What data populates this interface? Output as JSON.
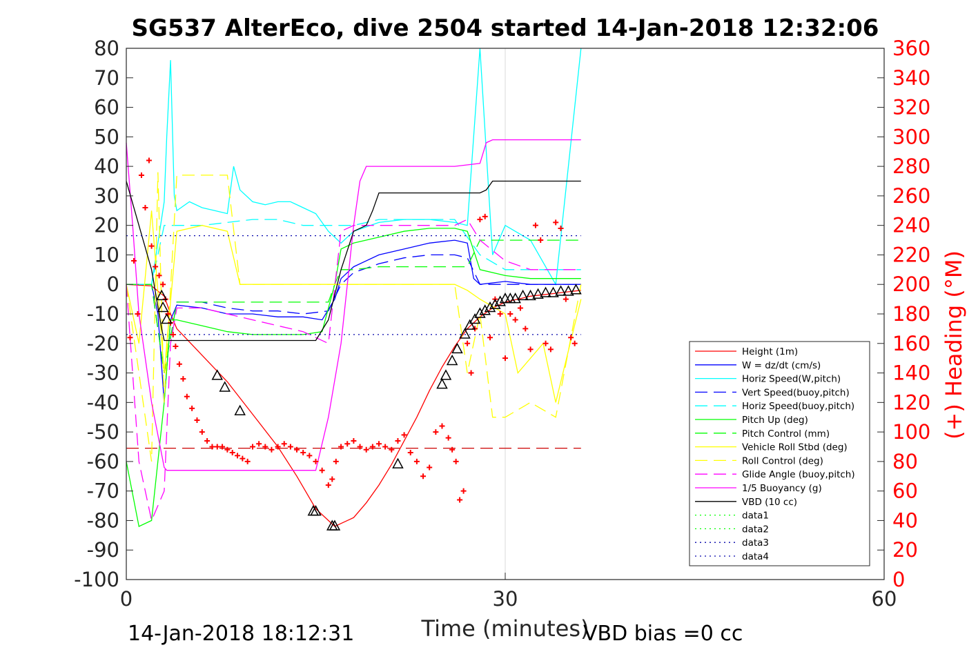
{
  "chart_data": {
    "type": "line",
    "title": "SG537 AlterEco, dive 2504 started 14-Jan-2018 12:32:06",
    "xlabel": "Time (minutes)",
    "ylabel": "",
    "ylabel_right": "(+) Heading (°M)",
    "xlim": [
      0,
      60
    ],
    "ylim": [
      -100,
      80
    ],
    "ylim_right": [
      0,
      360
    ],
    "x_ticks": [
      "0",
      "30",
      "60"
    ],
    "y_ticks": [
      "80",
      "70",
      "60",
      "50",
      "40",
      "30",
      "20",
      "10",
      "0",
      "-10",
      "-20",
      "-30",
      "-40",
      "-50",
      "-60",
      "-70",
      "-80",
      "-90",
      "-100"
    ],
    "y_ticks_right": [
      "360",
      "340",
      "320",
      "300",
      "280",
      "260",
      "240",
      "220",
      "200",
      "180",
      "160",
      "140",
      "120",
      "100",
      "80",
      "60",
      "40",
      "20",
      "0"
    ],
    "grid": "x only",
    "legend_position": "lower-right",
    "series": [
      {
        "name": "Height (1m)",
        "color": "#ff0000",
        "style": "solid",
        "x": [
          0,
          2.0,
          3.0,
          3.5,
          4,
          6,
          8,
          10,
          12,
          13.5,
          15,
          16,
          16.5,
          17,
          18,
          19,
          20,
          21,
          22,
          23,
          24,
          25,
          26,
          27,
          28,
          29,
          30,
          31,
          32,
          33,
          34,
          35,
          36
        ],
        "y": [
          0,
          -0.5,
          -4,
          -10,
          -15,
          -24,
          -33,
          -44,
          -55,
          -65,
          -76,
          -80,
          -82,
          -81,
          -79,
          -74,
          -68,
          -61,
          -53,
          -45,
          -36,
          -28,
          -21,
          -15,
          -11,
          -8,
          -6,
          -5,
          -4,
          -3.5,
          -3,
          -2.5,
          -2
        ]
      },
      {
        "name": "W = dz/dt (cm/s)",
        "color": "#0000ff",
        "style": "solid",
        "x": [
          0,
          2,
          2.5,
          3,
          3.5,
          4,
          6,
          8,
          10,
          12,
          14,
          15.5,
          16.5,
          17,
          18,
          20,
          22,
          24,
          26,
          27,
          27.5,
          28,
          30,
          32,
          34,
          36
        ],
        "y": [
          0,
          0,
          -10,
          -40,
          -12,
          -7,
          -8,
          -10,
          -10,
          -11,
          -11,
          -12,
          -5,
          2,
          6,
          10,
          12,
          14,
          15,
          14,
          2,
          0,
          1,
          0,
          0,
          0
        ]
      },
      {
        "name": "Horiz Speed(W,pitch)",
        "color": "#00ffff",
        "style": "solid",
        "x": [
          0,
          2,
          3,
          3.2,
          3.5,
          3.8,
          4,
          5,
          6,
          7,
          8,
          8.5,
          9,
          10,
          11,
          12,
          13,
          14,
          15,
          16,
          17,
          18,
          20,
          22,
          24,
          26,
          27,
          28,
          29,
          30,
          32,
          34,
          36
        ],
        "y": [
          0,
          0,
          28,
          50,
          76,
          30,
          25,
          28,
          26,
          25,
          24,
          40,
          32,
          28,
          27,
          28,
          28,
          26,
          24,
          18,
          14,
          18,
          21,
          22,
          22,
          21,
          20,
          80,
          10,
          20,
          15,
          0,
          80
        ]
      },
      {
        "name": "Vert Speed(buoy,pitch)",
        "color": "#0000ff",
        "style": "dashed",
        "x": [
          0,
          2,
          3,
          4,
          6,
          8,
          10,
          12,
          14,
          16,
          17,
          18,
          20,
          22,
          24,
          26,
          27,
          28,
          30,
          32,
          34,
          36
        ],
        "y": [
          0,
          0,
          -30,
          -6,
          -6,
          -8,
          -9,
          -9,
          -10,
          -9,
          0,
          4,
          7,
          9,
          10,
          10,
          9,
          0,
          0,
          0,
          0,
          0
        ]
      },
      {
        "name": "Horiz Speed(buoy,pitch)",
        "color": "#00ffff",
        "style": "dashed",
        "x": [
          0,
          2,
          3,
          4,
          6,
          8,
          10,
          12,
          14,
          16,
          17,
          18,
          20,
          22,
          24,
          26,
          28,
          30,
          32,
          34,
          36
        ],
        "y": [
          0,
          0,
          20,
          20,
          20,
          21,
          22,
          22,
          20,
          20,
          20,
          20,
          22,
          22,
          22,
          22,
          10,
          5,
          5,
          5,
          5
        ]
      },
      {
        "name": "Pitch Up (deg)",
        "color": "#00ff00",
        "style": "solid",
        "x": [
          0,
          1,
          2,
          3,
          3.5,
          4,
          6,
          8,
          10,
          12,
          14,
          15.5,
          16.5,
          17,
          18,
          20,
          22,
          24,
          26,
          27,
          28,
          30,
          32,
          34,
          36
        ],
        "y": [
          -60,
          -82,
          -80,
          -40,
          -12,
          -12,
          -14,
          -16,
          -17,
          -17,
          -17,
          -16,
          0,
          12,
          14,
          16,
          18,
          19,
          19,
          18,
          5,
          3,
          2,
          2,
          2
        ]
      },
      {
        "name": "Pitch Control (mm)",
        "color": "#00ff00",
        "style": "dashed",
        "x": [
          0,
          2,
          3,
          4,
          16,
          16.5,
          17,
          18,
          20,
          27,
          28,
          36
        ],
        "y": [
          0,
          0,
          -30,
          -6,
          -6,
          0,
          5,
          5,
          6,
          6,
          15,
          15
        ]
      },
      {
        "name": "Vehicle Roll Stbd (deg)",
        "color": "#ffff00",
        "style": "solid",
        "x": [
          0,
          1,
          2,
          3,
          4,
          6,
          8,
          9,
          10,
          12,
          14,
          16,
          18,
          20,
          24,
          26,
          27,
          28,
          30,
          31,
          32,
          33,
          34,
          36
        ],
        "y": [
          0,
          -20,
          25,
          -30,
          18,
          20,
          18,
          0,
          0,
          0,
          0,
          0,
          0,
          0,
          0,
          0,
          -2,
          -5,
          -10,
          -30,
          -25,
          -20,
          -40,
          -5
        ]
      },
      {
        "name": "Roll Control (deg)",
        "color": "#ffff00",
        "style": "dashed",
        "x": [
          0,
          1,
          2,
          2.5,
          3,
          4,
          6,
          8,
          9,
          10,
          16,
          18,
          26,
          27,
          28,
          29,
          30,
          32,
          34,
          36
        ],
        "y": [
          0,
          -30,
          -60,
          38,
          -40,
          37,
          37,
          37,
          0,
          0,
          0,
          0,
          0,
          -30,
          -10,
          -45,
          -45,
          -40,
          -45,
          0
        ]
      },
      {
        "name": "Glide Angle (buoy,pitch)",
        "color": "#ff00ff",
        "style": "dashed",
        "x": [
          0,
          1,
          2,
          3,
          3.5,
          4,
          6,
          8,
          10,
          12,
          14,
          16,
          17,
          18,
          20,
          22,
          24,
          26,
          27,
          28,
          30,
          32,
          34,
          36
        ],
        "y": [
          0,
          -60,
          -80,
          -70,
          -20,
          -8,
          -8,
          -10,
          -12,
          -14,
          -16,
          -20,
          18,
          20,
          20,
          20,
          20,
          20,
          22,
          15,
          8,
          5,
          5,
          5
        ]
      },
      {
        "name": "1/5 Buoyancy (g)",
        "color": "#ff00ff",
        "style": "solid",
        "x": [
          0,
          0.5,
          1,
          2,
          3,
          3.2,
          4,
          6,
          8,
          10,
          12,
          14,
          15,
          16,
          17,
          18,
          18.5,
          19,
          20,
          22,
          24,
          26,
          28,
          28.5,
          29,
          30,
          32,
          34,
          36
        ],
        "y": [
          48,
          20,
          -10,
          -40,
          -62,
          -63,
          -63,
          -63,
          -63,
          -63,
          -63,
          -63,
          -63,
          -45,
          -20,
          20,
          35,
          40,
          40,
          40,
          40,
          40,
          41,
          48,
          49,
          49,
          49,
          49,
          49
        ]
      },
      {
        "name": "VBD (10 cc)",
        "color": "#000000",
        "style": "solid",
        "x": [
          0,
          1,
          2,
          2.8,
          3,
          4,
          6,
          8,
          10,
          12,
          14,
          15,
          16,
          17,
          18,
          19,
          19.5,
          20,
          22,
          24,
          26,
          28,
          28.5,
          29,
          30,
          32,
          34,
          36
        ],
        "y": [
          35,
          20,
          5,
          -15,
          -19,
          -19,
          -19,
          -19,
          -19,
          -19,
          -19,
          -19,
          -12,
          5,
          18,
          20,
          25,
          31,
          31,
          31,
          31,
          31,
          32,
          35,
          35,
          35,
          35,
          35
        ]
      },
      {
        "name": "data1",
        "color": "#00ff00",
        "style": "dotted",
        "x": [],
        "y": []
      },
      {
        "name": "data2",
        "color": "#00ff00",
        "style": "dotted",
        "x": [],
        "y": []
      },
      {
        "name": "data3",
        "color": "#0000aa",
        "style": "dotted",
        "x": [
          0,
          36
        ],
        "y": [
          16.5,
          16.5
        ]
      },
      {
        "name": "data4",
        "color": "#0000aa",
        "style": "dotted",
        "x": [
          0,
          36
        ],
        "y": [
          -17,
          -17
        ]
      }
    ],
    "heading_reference": {
      "color": "#cc0000",
      "style": "dashed",
      "x": [
        0,
        36
      ],
      "y": [
        -55.5,
        -55.5
      ]
    },
    "heading_points": {
      "color": "#ff0000",
      "marker": "+",
      "x": [
        0.3,
        0.6,
        0.9,
        1.2,
        1.5,
        1.8,
        2.0,
        2.3,
        2.6,
        2.9,
        3.1,
        3.3,
        3.5,
        3.7,
        3.9,
        4.2,
        4.5,
        4.8,
        5.2,
        5.6,
        6.0,
        6.4,
        6.8,
        7.2,
        7.6,
        8.0,
        8.4,
        8.8,
        9.2,
        9.6,
        10,
        10.5,
        11,
        11.5,
        12,
        12.5,
        13,
        13.5,
        14,
        14.5,
        15,
        15.5,
        16,
        16.3,
        16.6,
        17,
        17.5,
        18,
        18.5,
        19,
        19.5,
        20,
        20.5,
        21,
        21.5,
        22,
        22.5,
        23,
        23.5,
        24,
        24.5,
        25,
        25.5,
        25.8,
        26.1,
        26.4,
        26.7,
        27,
        27.3,
        27.6,
        28,
        28.4,
        28.8,
        29.2,
        29.6,
        30,
        30.4,
        30.8,
        31.2,
        31.6,
        32,
        32.4,
        32.8,
        33.2,
        33.6,
        34,
        34.4,
        34.8,
        35.2,
        35.5
      ],
      "y": [
        -18,
        8,
        -10,
        37,
        26,
        42,
        13,
        6,
        3,
        0,
        -5,
        -10,
        -13,
        -17,
        -21,
        -27,
        -32,
        -38,
        -42,
        -46,
        -50,
        -53,
        -55,
        -55,
        -55,
        -56,
        -57,
        -58,
        -59,
        -60,
        -55,
        -54,
        -55,
        -56,
        -55,
        -54,
        -55,
        -56,
        -57,
        -58,
        -60,
        -63,
        -68,
        -66,
        -60,
        -55,
        -54,
        -53,
        -55,
        -56,
        -55,
        -54,
        -55,
        -56,
        -53,
        -51,
        -57,
        -60,
        -65,
        -62,
        -50,
        -48,
        -52,
        -56,
        -60,
        -73,
        -70,
        -20,
        -30,
        -15,
        22,
        23,
        -18,
        -5,
        -10,
        -25,
        -10,
        -12,
        -8,
        -15,
        -22,
        20,
        15,
        -20,
        -22,
        21,
        19,
        -5,
        -18,
        -20
      ]
    },
    "triangle_markers": {
      "x": [
        2.8,
        2.9,
        3.2,
        7.2,
        7.8,
        9.0,
        14.8,
        15.0,
        16.3,
        16.5,
        21.5,
        25.0,
        25.3,
        25.8,
        26.2,
        26.8,
        27.2,
        27.6,
        28.0,
        28.4,
        28.8,
        29.2,
        29.6,
        30.0,
        30.4,
        30.8,
        31.4,
        32.0,
        32.6,
        33.2,
        33.8,
        34.4,
        35.0,
        35.6
      ],
      "y": [
        -4,
        -8,
        -12,
        -31,
        -35,
        -43,
        -77,
        -77,
        -82,
        -82,
        -61,
        -34,
        -31,
        -26,
        -22,
        -17,
        -14,
        -12,
        -10,
        -9,
        -8,
        -7,
        -6,
        -5,
        -5,
        -5,
        -4,
        -4,
        -3.5,
        -3,
        -3,
        -2.5,
        -2.5,
        -2
      ]
    }
  },
  "footer": {
    "timestamp": "14-Jan-2018 18:12:31",
    "vbd_bias": "VBD bias =0 cc"
  }
}
